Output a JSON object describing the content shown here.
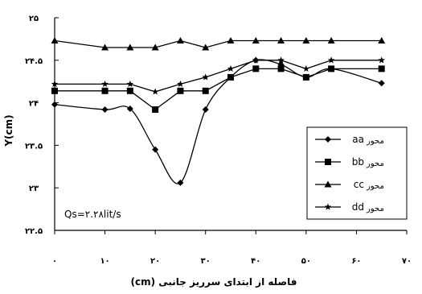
{
  "chart_data": {
    "type": "line",
    "xlabel": "فاصله از ابتدای سرریز جانبی (cm)",
    "ylabel": "Y(cm)",
    "xlim": [
      0,
      70
    ],
    "ylim": [
      22.5,
      25
    ],
    "x_tick_values": [
      0,
      10,
      20,
      30,
      40,
      50,
      60,
      70
    ],
    "x_tick_labels": [
      "۰",
      "۱۰",
      "۲۰",
      "۳۰",
      "۴۰",
      "۵۰",
      "۶۰",
      "۷۰"
    ],
    "y_tick_values": [
      22.5,
      23,
      23.5,
      24,
      24.5,
      25
    ],
    "y_tick_labels": [
      "۲۲.۵",
      "۲۳",
      "۲۳.۵",
      "۲۴",
      "۲۴.۵",
      "۲۵"
    ],
    "grid": false,
    "legend_position": "bottom-right",
    "annotation": "Qs=۲.۲۸lit/s",
    "series": [
      {
        "name": "aa",
        "label_fa": "محور",
        "marker": "diamond",
        "x": [
          0,
          10,
          15,
          20,
          25,
          30,
          35,
          40,
          45,
          50,
          55,
          65
        ],
        "y": [
          23.98,
          23.92,
          23.93,
          23.45,
          23.06,
          23.92,
          24.3,
          24.5,
          24.45,
          24.3,
          24.4,
          24.23
        ]
      },
      {
        "name": "bb",
        "label_fa": "محور",
        "marker": "square",
        "x": [
          0,
          10,
          15,
          20,
          25,
          30,
          35,
          40,
          45,
          50,
          55,
          65
        ],
        "y": [
          24.14,
          24.14,
          24.14,
          23.92,
          24.14,
          24.14,
          24.3,
          24.4,
          24.4,
          24.3,
          24.4,
          24.4
        ]
      },
      {
        "name": "cc",
        "label_fa": "محور",
        "marker": "triangle",
        "x": [
          0,
          10,
          15,
          20,
          25,
          30,
          35,
          40,
          45,
          50,
          55,
          65
        ],
        "y": [
          24.73,
          24.65,
          24.65,
          24.65,
          24.73,
          24.65,
          24.73,
          24.73,
          24.73,
          24.73,
          24.73,
          24.73
        ]
      },
      {
        "name": "dd",
        "label_fa": "محور",
        "marker": "star",
        "x": [
          0,
          10,
          15,
          20,
          25,
          30,
          35,
          40,
          45,
          50,
          55,
          65
        ],
        "y": [
          24.22,
          24.22,
          24.22,
          24.13,
          24.22,
          24.3,
          24.4,
          24.5,
          24.5,
          24.4,
          24.5,
          24.5
        ]
      }
    ]
  }
}
